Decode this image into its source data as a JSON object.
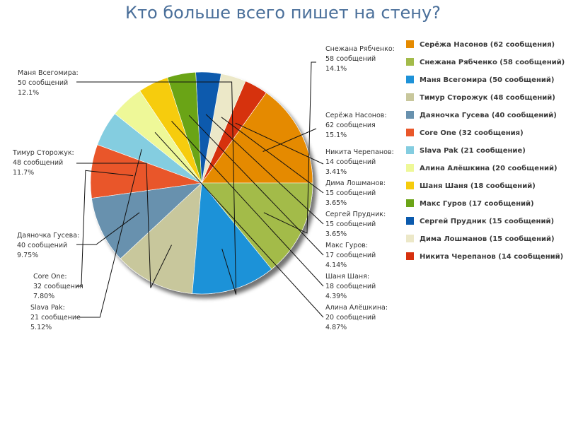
{
  "title": "Кто больше всего пишет на стену?",
  "chart_data": {
    "type": "pie",
    "title": "Кто больше всего пишет на стену?",
    "legend_position": "right",
    "slices": [
      {
        "name": "Серёжа Насонов",
        "value": 62,
        "unit": "сообщения",
        "percent": "15.1%",
        "legend": "Серёжа Насонов (62 сообщения)",
        "color": "#e58a00"
      },
      {
        "name": "Никита Черепанов",
        "value": 14,
        "unit": "сообщений",
        "percent": "3.41%",
        "legend": "Никита Черепанов (14 сообщений)",
        "color": "#d6300e"
      },
      {
        "name": "Дима Лошманов",
        "value": 15,
        "unit": "сообщений",
        "percent": "3.65%",
        "legend": "Дима Лошманов (15 сообщений)",
        "color": "#ece8c8"
      },
      {
        "name": "Сергей Прудник",
        "value": 15,
        "unit": "сообщений",
        "percent": "3.65%",
        "legend": "Сергей Прудник (15 сообщений)",
        "color": "#0b5aad"
      },
      {
        "name": "Макс Гуров",
        "value": 17,
        "unit": "сообщений",
        "percent": "4.14%",
        "legend": "Макс Гуров (17 сообщений)",
        "color": "#6ba417"
      },
      {
        "name": "Шаня Шаня",
        "value": 18,
        "unit": "сообщений",
        "percent": "4.39%",
        "legend": "Шаня Шаня (18 сообщений)",
        "color": "#f6cc0c"
      },
      {
        "name": "Алина Алёшкина",
        "value": 20,
        "unit": "сообщений",
        "percent": "4.87%",
        "legend": "Алина Алёшкина (20 сообщений)",
        "color": "#eef898"
      },
      {
        "name": "Slava Pak",
        "value": 21,
        "unit": "сообщение",
        "percent": "5.12%",
        "legend": "Slava Pak (21 сообщение)",
        "color": "#84cde0"
      },
      {
        "name": "Core One",
        "value": 32,
        "unit": "сообщения",
        "percent": "7.80%",
        "legend": "Core One (32 сообщения)",
        "color": "#e9572a"
      },
      {
        "name": "Даяночка Гусева",
        "value": 40,
        "unit": "сообщений",
        "percent": "9.75%",
        "legend": "Даяночка Гусева (40 сообщений)",
        "color": "#6891ae"
      },
      {
        "name": "Тимур Сторожук",
        "value": 48,
        "unit": "сообщений",
        "percent": "11.7%",
        "legend": "Тимур Сторожук (48 сообщений)",
        "color": "#c8c79c"
      },
      {
        "name": "Маня Всегомира",
        "value": 50,
        "unit": "сообщений",
        "percent": "12.1%",
        "legend": "Маня Всегомира (50 сообщений)",
        "color": "#1e92d8"
      },
      {
        "name": "Снежана Рябченко",
        "value": 58,
        "unit": "сообщений",
        "percent": "14.1%",
        "legend": "Снежана Рябченко (58 сообщений)",
        "color": "#a3bb4a"
      }
    ],
    "legend_order": [
      "Серёжа Насонов",
      "Снежана Рябченко",
      "Маня Всегомира",
      "Тимур Сторожук",
      "Даяночка Гусева",
      "Core One",
      "Slava Pak",
      "Алина Алёшкина",
      "Шаня Шаня",
      "Макс Гуров",
      "Сергей Прудник",
      "Дима Лошманов",
      "Никита Черепанов"
    ]
  }
}
